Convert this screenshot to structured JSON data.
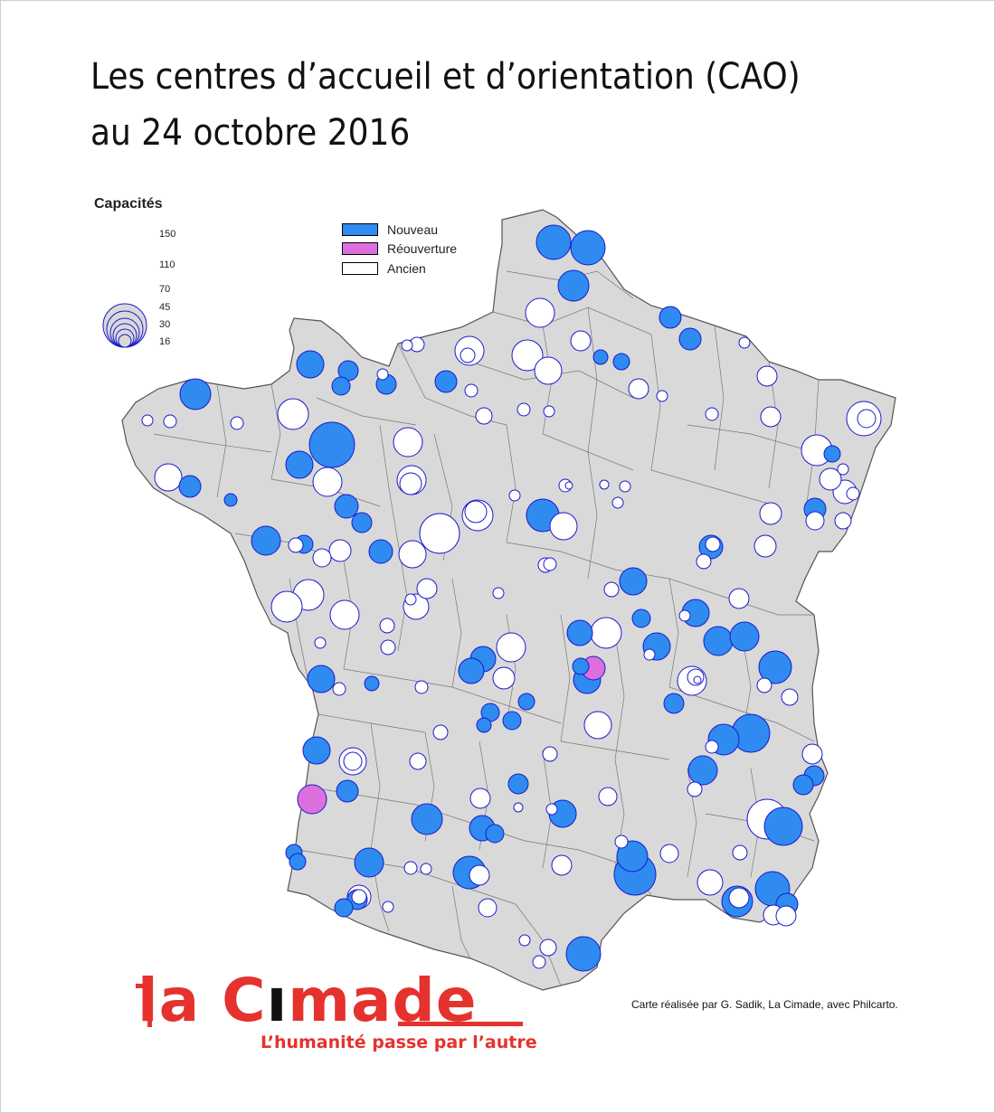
{
  "title": {
    "line1": "Les centres d’accueil et d’orientation (CAO)",
    "line2": "au 24 octobre 2016"
  },
  "legend": {
    "sizes_title": "Capacités",
    "sizes": [
      150,
      110,
      70,
      45,
      30,
      16
    ],
    "size_labels": [
      "150",
      "110",
      "70",
      "45",
      "30",
      "16"
    ],
    "categories": [
      {
        "label": "Nouveau",
        "color": "#2f8bf0"
      },
      {
        "label": "Réouverture",
        "color": "#dc6fdc"
      },
      {
        "label": "Ancien",
        "color": "#ffffff"
      }
    ]
  },
  "colors": {
    "land": "#d9d9d9",
    "border": "#555555",
    "circle_outline": "#1a1acc",
    "brand": "#e5322d"
  },
  "logo": {
    "text_a": "la C",
    "text_b": "made",
    "tagline": "L’humanité passe par l’autre"
  },
  "credit": "Carte réalisée par G. Sadik, La Cimade, avec Philcarto."
}
